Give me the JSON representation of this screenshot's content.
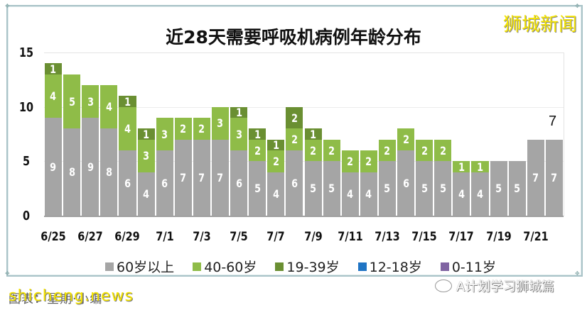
{
  "watermark": {
    "brand": "狮城新闻",
    "site": "shicheng.news",
    "footer_caption": "图表：星期·小编",
    "account": "A计划学习狮城篇"
  },
  "chart_data": {
    "type": "bar",
    "stacked": true,
    "title": "近28天需要呼吸机病例年龄分布",
    "xlabel": "",
    "ylabel": "",
    "ylim": [
      0,
      15
    ],
    "yticks": [
      0,
      5,
      10,
      15
    ],
    "grid": true,
    "legend_position": "bottom",
    "categories": [
      "6/25",
      "6/26",
      "6/27",
      "6/28",
      "6/29",
      "6/30",
      "7/1",
      "7/2",
      "7/3",
      "7/4",
      "7/5",
      "7/6",
      "7/7",
      "7/8",
      "7/9",
      "7/10",
      "7/11",
      "7/12",
      "7/13",
      "7/14",
      "7/15",
      "7/16",
      "7/17",
      "7/18",
      "7/19",
      "7/20",
      "7/21",
      "7/22"
    ],
    "xtick_labels": [
      "6/25",
      "6/27",
      "6/29",
      "7/1",
      "7/3",
      "7/5",
      "7/7",
      "7/9",
      "7/11",
      "7/13",
      "7/15",
      "7/17",
      "7/19",
      "7/21"
    ],
    "series": [
      {
        "name": "60岁以上",
        "color": "#a5a5a5",
        "values": [
          9,
          8,
          9,
          8,
          6,
          4,
          6,
          7,
          7,
          7,
          6,
          5,
          4,
          6,
          5,
          5,
          4,
          4,
          5,
          6,
          5,
          5,
          4,
          4,
          5,
          5,
          7,
          7
        ]
      },
      {
        "name": "40-60岁",
        "color": "#8fbc48",
        "values": [
          4,
          5,
          3,
          4,
          4,
          3,
          3,
          2,
          2,
          3,
          3,
          2,
          2,
          2,
          2,
          2,
          2,
          2,
          2,
          2,
          2,
          2,
          1,
          1,
          0,
          0,
          0,
          0
        ]
      },
      {
        "name": "19-39岁",
        "color": "#6a8f32",
        "values": [
          1,
          0,
          0,
          0,
          1,
          1,
          0,
          0,
          0,
          0,
          1,
          1,
          1,
          2,
          1,
          0,
          0,
          0,
          0,
          0,
          0,
          0,
          0,
          0,
          0,
          0,
          0,
          0
        ]
      },
      {
        "name": "12-18岁",
        "color": "#1f74c4",
        "values": [
          0,
          0,
          0,
          0,
          0,
          0,
          0,
          0,
          0,
          0,
          0,
          0,
          0,
          0,
          0,
          0,
          0,
          0,
          0,
          0,
          0,
          0,
          0,
          0,
          0,
          0,
          0,
          0
        ]
      },
      {
        "name": "0-11岁",
        "color": "#8064a2",
        "values": [
          0,
          0,
          0,
          0,
          0,
          0,
          0,
          0,
          0,
          0,
          0,
          0,
          0,
          0,
          0,
          0,
          0,
          0,
          0,
          0,
          0,
          0,
          0,
          0,
          0,
          0,
          0,
          0
        ]
      }
    ],
    "annotations": [
      {
        "x": "7/22",
        "text": "7"
      }
    ]
  }
}
